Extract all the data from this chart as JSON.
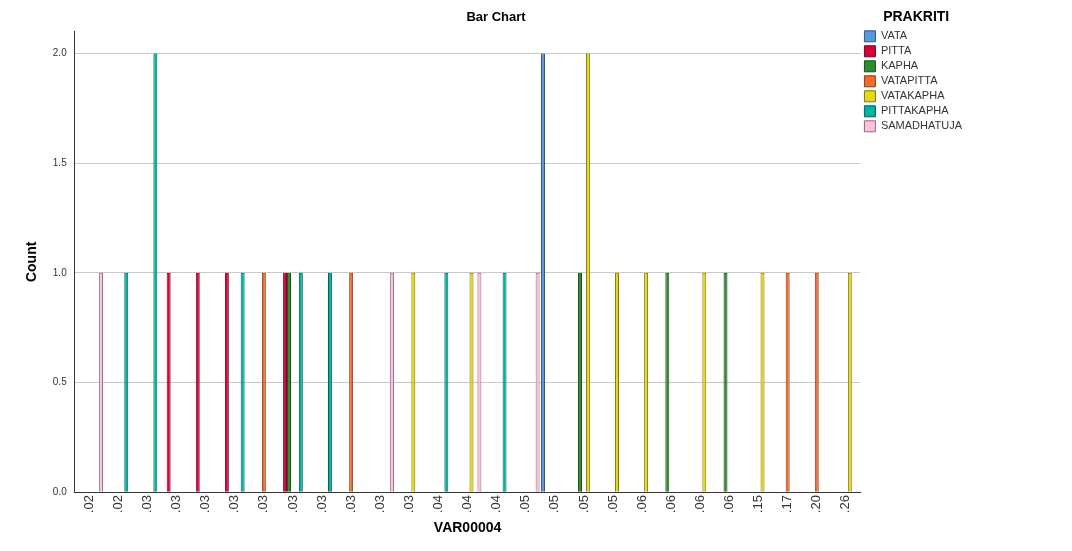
{
  "chart_data": {
    "type": "bar",
    "title": "Bar Chart",
    "xlabel": "VAR00004",
    "ylabel": "Count",
    "legend_title": "PRAKRITI",
    "categories": [
      ".02",
      ".02",
      ".03",
      ".03",
      ".03",
      ".03",
      ".03",
      ".03",
      ".03",
      ".03",
      ".03",
      ".03",
      ".04",
      ".04",
      ".04",
      ".05",
      ".05",
      ".05",
      ".05",
      ".06",
      ".06",
      ".06",
      ".06",
      ".15",
      ".17",
      ".20",
      ".26"
    ],
    "series": [
      {
        "name": "VATA",
        "color": "#5b96e1",
        "values": [
          null,
          null,
          null,
          null,
          null,
          null,
          null,
          null,
          null,
          null,
          null,
          null,
          null,
          null,
          null,
          null,
          2,
          null,
          null,
          null,
          null,
          null,
          null,
          null,
          null,
          null,
          null
        ]
      },
      {
        "name": "PITTA",
        "color": "#d8003a",
        "values": [
          null,
          null,
          null,
          1,
          1,
          1,
          null,
          1,
          null,
          null,
          null,
          null,
          null,
          null,
          null,
          null,
          null,
          null,
          null,
          null,
          null,
          null,
          null,
          null,
          null,
          null,
          null
        ]
      },
      {
        "name": "KAPHA",
        "color": "#2e8b2e",
        "values": [
          null,
          null,
          null,
          null,
          null,
          null,
          null,
          1,
          null,
          null,
          null,
          null,
          null,
          null,
          null,
          null,
          null,
          1,
          null,
          null,
          1,
          null,
          1,
          null,
          null,
          null,
          null
        ]
      },
      {
        "name": "VATAPITTA",
        "color": "#f26b2b",
        "values": [
          null,
          null,
          null,
          null,
          null,
          null,
          1,
          null,
          null,
          1,
          null,
          null,
          null,
          null,
          null,
          null,
          null,
          null,
          null,
          null,
          null,
          null,
          null,
          null,
          1,
          1,
          null
        ]
      },
      {
        "name": "VATAKAPHA",
        "color": "#e6d817",
        "values": [
          null,
          null,
          null,
          null,
          null,
          null,
          null,
          null,
          null,
          null,
          null,
          1,
          null,
          1,
          null,
          null,
          null,
          2,
          1,
          1,
          null,
          1,
          null,
          1,
          null,
          null,
          1
        ]
      },
      {
        "name": "PITTAKAPHA",
        "color": "#00b3a0",
        "values": [
          null,
          1,
          2,
          null,
          null,
          1,
          null,
          1,
          1,
          null,
          null,
          null,
          1,
          null,
          1,
          null,
          null,
          null,
          null,
          null,
          null,
          null,
          null,
          null,
          null,
          null,
          null
        ]
      },
      {
        "name": "SAMADHATUJA",
        "color": "#ffc0e0",
        "values": [
          1,
          null,
          null,
          null,
          null,
          null,
          null,
          null,
          null,
          null,
          1,
          null,
          null,
          1,
          null,
          1,
          null,
          null,
          null,
          null,
          null,
          null,
          null,
          null,
          null,
          null,
          null
        ]
      }
    ],
    "ylim": [
      0,
      2.1
    ],
    "yticks": [
      {
        "value": 0,
        "label": "0.0"
      },
      {
        "value": 0.5,
        "label": "0.5"
      },
      {
        "value": 1,
        "label": "1.0"
      },
      {
        "value": 1.5,
        "label": "1.5"
      },
      {
        "value": 2,
        "label": "2.0"
      }
    ],
    "grid": "y",
    "legend": "top right"
  }
}
